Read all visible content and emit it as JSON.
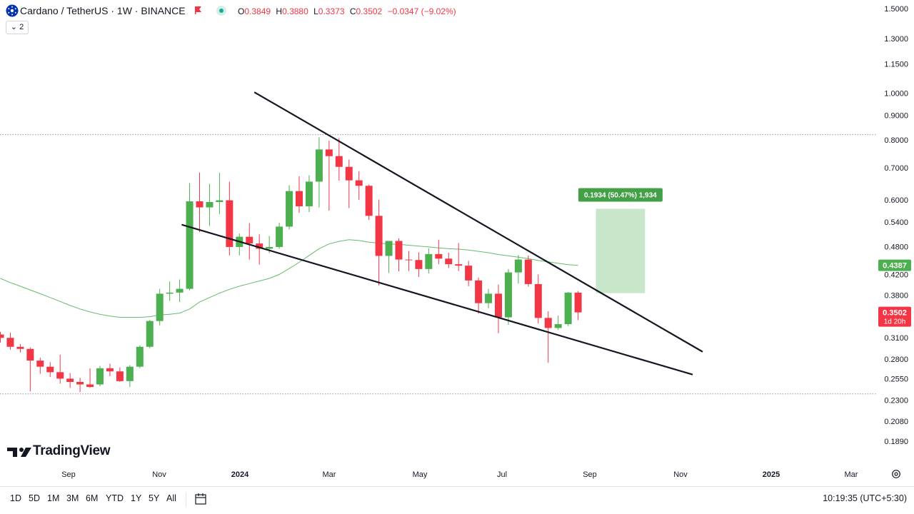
{
  "header": {
    "symbol_title": "Cardano / TetherUS · 1W · BINANCE",
    "ohlc": {
      "open_label": "O",
      "open": "0.3849",
      "high_label": "H",
      "high": "0.3880",
      "low_label": "L",
      "low": "0.3373",
      "close_label": "C",
      "close": "0.3502",
      "change": "−0.0347 (−9.02%)"
    },
    "indicator_count": "2"
  },
  "colors": {
    "up": "#4caf50",
    "down": "#f23645",
    "ma": "#66bb6a",
    "measure": "#c8e6c9",
    "line": "#131722"
  },
  "logo_text": "TradingView",
  "chart_data": {
    "type": "candlestick",
    "y_scale": "log",
    "ylim": [
      0.189,
      1.5
    ],
    "y_ticks": [
      "1.5000",
      "1.3000",
      "1.1500",
      "1.0000",
      "0.9000",
      "0.8000",
      "0.7000",
      "0.6000",
      "0.5400",
      "0.4800",
      "0.4200",
      "0.3800",
      "0.3100",
      "0.2800",
      "0.2550",
      "0.2300",
      "0.2080",
      "0.1890"
    ],
    "x_ticks": [
      "Sep",
      "Nov",
      "2024",
      "Mar",
      "May",
      "Jul",
      "Sep",
      "Nov",
      "2025",
      "Mar"
    ],
    "candles": [
      {
        "o": 0.315,
        "h": 0.319,
        "l": 0.303,
        "c": 0.31
      },
      {
        "o": 0.31,
        "h": 0.318,
        "l": 0.293,
        "c": 0.297
      },
      {
        "o": 0.297,
        "h": 0.301,
        "l": 0.289,
        "c": 0.294
      },
      {
        "o": 0.294,
        "h": 0.296,
        "l": 0.24,
        "c": 0.278
      },
      {
        "o": 0.278,
        "h": 0.282,
        "l": 0.261,
        "c": 0.27
      },
      {
        "o": 0.27,
        "h": 0.276,
        "l": 0.257,
        "c": 0.263
      },
      {
        "o": 0.263,
        "h": 0.286,
        "l": 0.249,
        "c": 0.255
      },
      {
        "o": 0.255,
        "h": 0.262,
        "l": 0.244,
        "c": 0.251
      },
      {
        "o": 0.251,
        "h": 0.256,
        "l": 0.239,
        "c": 0.248
      },
      {
        "o": 0.248,
        "h": 0.268,
        "l": 0.244,
        "c": 0.245
      },
      {
        "o": 0.248,
        "h": 0.271,
        "l": 0.246,
        "c": 0.268
      },
      {
        "o": 0.268,
        "h": 0.274,
        "l": 0.258,
        "c": 0.264
      },
      {
        "o": 0.264,
        "h": 0.269,
        "l": 0.251,
        "c": 0.252
      },
      {
        "o": 0.252,
        "h": 0.272,
        "l": 0.245,
        "c": 0.27
      },
      {
        "o": 0.27,
        "h": 0.299,
        "l": 0.268,
        "c": 0.297
      },
      {
        "o": 0.297,
        "h": 0.338,
        "l": 0.295,
        "c": 0.336
      },
      {
        "o": 0.336,
        "h": 0.392,
        "l": 0.329,
        "c": 0.383
      },
      {
        "o": 0.383,
        "h": 0.406,
        "l": 0.37,
        "c": 0.385
      },
      {
        "o": 0.385,
        "h": 0.41,
        "l": 0.368,
        "c": 0.392
      },
      {
        "o": 0.392,
        "h": 0.65,
        "l": 0.389,
        "c": 0.596
      },
      {
        "o": 0.596,
        "h": 0.684,
        "l": 0.514,
        "c": 0.579
      },
      {
        "o": 0.579,
        "h": 0.648,
        "l": 0.53,
        "c": 0.594
      },
      {
        "o": 0.594,
        "h": 0.683,
        "l": 0.561,
        "c": 0.599
      },
      {
        "o": 0.599,
        "h": 0.655,
        "l": 0.46,
        "c": 0.479
      },
      {
        "o": 0.479,
        "h": 0.511,
        "l": 0.46,
        "c": 0.503
      },
      {
        "o": 0.503,
        "h": 0.537,
        "l": 0.451,
        "c": 0.487
      },
      {
        "o": 0.487,
        "h": 0.509,
        "l": 0.44,
        "c": 0.475
      },
      {
        "o": 0.475,
        "h": 0.505,
        "l": 0.465,
        "c": 0.479
      },
      {
        "o": 0.479,
        "h": 0.538,
        "l": 0.475,
        "c": 0.528
      },
      {
        "o": 0.528,
        "h": 0.644,
        "l": 0.521,
        "c": 0.626
      },
      {
        "o": 0.626,
        "h": 0.672,
        "l": 0.564,
        "c": 0.582
      },
      {
        "o": 0.582,
        "h": 0.675,
        "l": 0.566,
        "c": 0.655
      },
      {
        "o": 0.655,
        "h": 0.81,
        "l": 0.579,
        "c": 0.764
      },
      {
        "o": 0.764,
        "h": 0.797,
        "l": 0.57,
        "c": 0.74
      },
      {
        "o": 0.74,
        "h": 0.806,
        "l": 0.658,
        "c": 0.703
      },
      {
        "o": 0.703,
        "h": 0.728,
        "l": 0.577,
        "c": 0.659
      },
      {
        "o": 0.659,
        "h": 0.689,
        "l": 0.6,
        "c": 0.642
      },
      {
        "o": 0.642,
        "h": 0.646,
        "l": 0.545,
        "c": 0.556
      },
      {
        "o": 0.556,
        "h": 0.601,
        "l": 0.398,
        "c": 0.459
      },
      {
        "o": 0.459,
        "h": 0.492,
        "l": 0.423,
        "c": 0.493
      },
      {
        "o": 0.493,
        "h": 0.499,
        "l": 0.426,
        "c": 0.451
      },
      {
        "o": 0.451,
        "h": 0.47,
        "l": 0.427,
        "c": 0.45
      },
      {
        "o": 0.45,
        "h": 0.467,
        "l": 0.415,
        "c": 0.431
      },
      {
        "o": 0.431,
        "h": 0.476,
        "l": 0.422,
        "c": 0.463
      },
      {
        "o": 0.463,
        "h": 0.496,
        "l": 0.441,
        "c": 0.453
      },
      {
        "o": 0.453,
        "h": 0.466,
        "l": 0.433,
        "c": 0.441
      },
      {
        "o": 0.441,
        "h": 0.488,
        "l": 0.427,
        "c": 0.438
      },
      {
        "o": 0.438,
        "h": 0.448,
        "l": 0.397,
        "c": 0.408
      },
      {
        "o": 0.408,
        "h": 0.414,
        "l": 0.348,
        "c": 0.366
      },
      {
        "o": 0.366,
        "h": 0.392,
        "l": 0.357,
        "c": 0.383
      },
      {
        "o": 0.383,
        "h": 0.4,
        "l": 0.317,
        "c": 0.342
      },
      {
        "o": 0.342,
        "h": 0.431,
        "l": 0.33,
        "c": 0.424
      },
      {
        "o": 0.424,
        "h": 0.461,
        "l": 0.402,
        "c": 0.451
      },
      {
        "o": 0.451,
        "h": 0.46,
        "l": 0.396,
        "c": 0.401
      },
      {
        "o": 0.401,
        "h": 0.42,
        "l": 0.332,
        "c": 0.341
      },
      {
        "o": 0.341,
        "h": 0.352,
        "l": 0.275,
        "c": 0.325
      },
      {
        "o": 0.325,
        "h": 0.345,
        "l": 0.322,
        "c": 0.331
      },
      {
        "o": 0.331,
        "h": 0.386,
        "l": 0.328,
        "c": 0.385
      },
      {
        "o": 0.3849,
        "h": 0.388,
        "l": 0.3373,
        "c": 0.3502
      }
    ],
    "moving_average": [
      0.412,
      0.404,
      0.397,
      0.39,
      0.383,
      0.376,
      0.369,
      0.362,
      0.356,
      0.351,
      0.347,
      0.344,
      0.342,
      0.342,
      0.342,
      0.343,
      0.346,
      0.347,
      0.349,
      0.356,
      0.368,
      0.376,
      0.384,
      0.391,
      0.397,
      0.402,
      0.407,
      0.412,
      0.42,
      0.432,
      0.445,
      0.46,
      0.475,
      0.486,
      0.492,
      0.496,
      0.494,
      0.49,
      0.488,
      0.486,
      0.485,
      0.483,
      0.481,
      0.479,
      0.477,
      0.475,
      0.474,
      0.472,
      0.469,
      0.466,
      0.462,
      0.459,
      0.456,
      0.453,
      0.449,
      0.446,
      0.443,
      0.44,
      0.4387
    ],
    "trendlines": [
      {
        "from": {
          "bar": 25.5,
          "price": 1.005
        },
        "to": {
          "bar": 70.5,
          "price": 0.29
        }
      },
      {
        "from": {
          "bar": 18.2,
          "price": 0.533
        },
        "to": {
          "bar": 69.5,
          "price": 0.26
        }
      }
    ],
    "measure": {
      "label": "0.1934 (50.47%) 1,934",
      "from_bar": 60,
      "to_bar": 64.5,
      "low": 0.384,
      "high": 0.575
    },
    "hlines": [
      0.82,
      0.237
    ],
    "price_labels": [
      {
        "text": "0.4387",
        "bg": "#4caf50"
      },
      {
        "text": "0.3502",
        "sub": "1d 20h",
        "bg": "#f23645"
      }
    ]
  },
  "timeframes": [
    "1D",
    "5D",
    "1M",
    "3M",
    "6M",
    "YTD",
    "1Y",
    "5Y",
    "All"
  ],
  "clock": "10:19:35 (UTC+5:30)"
}
